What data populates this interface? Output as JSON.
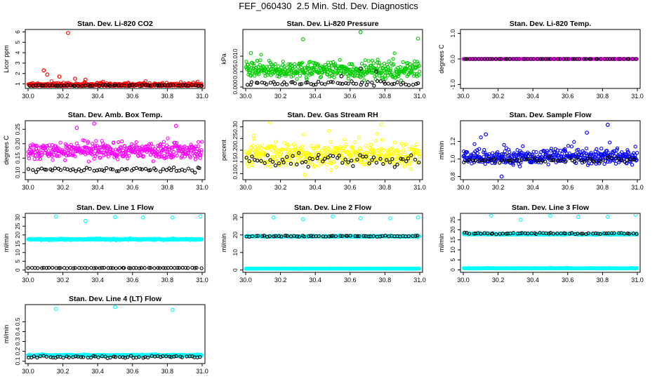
{
  "page": {
    "title": "FEF_060430  2.5 Min. Std. Dev. Diagnostics"
  },
  "colors": {
    "red": "#ff0000",
    "green": "#00cc00",
    "magenta": "#ff00ff",
    "yellow": "#ffff00",
    "blue": "#0000ff",
    "cyan": "#00ffff",
    "black": "#000000"
  },
  "chart_data": [
    {
      "type": "scatter",
      "title": "Stan. Dev. Li-820 CO2",
      "ylabel": "Licor ppm",
      "xlim": [
        30.0,
        31.0
      ],
      "ylim": [
        0.7,
        6.1
      ],
      "xticks": [
        "30.0",
        "30.2",
        "30.4",
        "30.6",
        "30.8",
        "31.0"
      ],
      "yticks": [
        "1",
        "2",
        "3",
        "4",
        "5",
        "6"
      ],
      "series": [
        {
          "name": "primary",
          "color": "red",
          "baseline": 0.9,
          "spread": 0.25,
          "outliers": [
            [
              30.23,
              5.9
            ],
            [
              30.09,
              2.3
            ],
            [
              30.11,
              1.9
            ],
            [
              30.18,
              1.7
            ],
            [
              30.27,
              1.5
            ],
            [
              30.33,
              1.4
            ],
            [
              30.43,
              1.2
            ]
          ]
        },
        {
          "name": "secondary",
          "color": "black",
          "baseline": 0.85,
          "spread": 0.1,
          "outliers": []
        }
      ]
    },
    {
      "type": "scatter",
      "title": "Stan. Dev. Li-820 Pressure",
      "ylabel": "kPa",
      "xlim": [
        30.0,
        31.0
      ],
      "ylim": [
        0.0,
        0.0182
      ],
      "xticks": [
        "30.0",
        "30.2",
        "30.4",
        "30.6",
        "30.8",
        "31.0"
      ],
      "yticks": [
        "0.000",
        "0.005",
        "0.010"
      ],
      "series": [
        {
          "name": "primary",
          "color": "green",
          "baseline": 0.0055,
          "spread": 0.004,
          "outliers": [
            [
              30.33,
              0.0155
            ],
            [
              30.66,
              0.0178
            ],
            [
              30.99,
              0.0157
            ],
            [
              30.03,
              0.011
            ]
          ]
        },
        {
          "name": "secondary",
          "color": "black",
          "baseline": 0.0012,
          "spread": 0.0012,
          "outliers": [
            [
              30.55,
              0.0035
            ],
            [
              30.66,
              0.006
            ],
            [
              30.75,
              0.005
            ]
          ]
        }
      ]
    },
    {
      "type": "scatter",
      "title": "Stan. Dev. Li-820 Temp.",
      "ylabel": "degrees C",
      "xlim": [
        30.0,
        31.0
      ],
      "ylim": [
        -1.1,
        1.1
      ],
      "xticks": [
        "30.0",
        "30.2",
        "30.4",
        "30.6",
        "30.8",
        "31.0"
      ],
      "yticks": [
        "-1.0",
        "0.0",
        "1.0"
      ],
      "series": [
        {
          "name": "primary",
          "color": "magenta",
          "baseline": 0.0,
          "spread": 0.0,
          "outliers": []
        },
        {
          "name": "secondary",
          "color": "black",
          "baseline": 0.0,
          "spread": 0.0,
          "outliers": []
        }
      ]
    },
    {
      "type": "scatter",
      "title": "Stan. Dev. Amb. Box Temp.",
      "ylabel": "degrees C",
      "xlim": [
        30.0,
        31.0
      ],
      "ylim": [
        0.08,
        0.275
      ],
      "xticks": [
        "30.0",
        "30.2",
        "30.4",
        "30.6",
        "30.8",
        "31.0"
      ],
      "yticks": [
        "0.10",
        "0.15",
        "0.20",
        "0.25"
      ],
      "series": [
        {
          "name": "primary",
          "color": "magenta",
          "baseline": 0.175,
          "spread": 0.04,
          "outliers": [
            [
              30.38,
              0.27
            ],
            [
              30.28,
              0.255
            ],
            [
              30.85,
              0.262
            ]
          ]
        },
        {
          "name": "secondary",
          "color": "black",
          "baseline": 0.11,
          "spread": 0.012,
          "outliers": []
        }
      ]
    },
    {
      "type": "scatter",
      "title": "Stan. Dev. Gas Stream RH",
      "ylabel": "percent",
      "xlim": [
        30.0,
        31.0
      ],
      "ylim": [
        0.08,
        0.32
      ],
      "xticks": [
        "30.0",
        "30.2",
        "30.4",
        "30.6",
        "30.8",
        "31.0"
      ],
      "yticks": [
        "0.10",
        "0.15",
        "0.20",
        "0.25",
        "0.30"
      ],
      "series": [
        {
          "name": "primary",
          "color": "yellow",
          "baseline": 0.18,
          "spread": 0.07,
          "outliers": [
            [
              30.14,
              0.32
            ],
            [
              30.78,
              0.31
            ],
            [
              30.34,
              0.095
            ]
          ]
        },
        {
          "name": "secondary",
          "color": "black",
          "baseline": 0.16,
          "spread": 0.045,
          "outliers": []
        }
      ]
    },
    {
      "type": "scatter",
      "title": "Stan. Dev. Sample Flow",
      "ylabel": "ml/min",
      "xlim": [
        30.0,
        31.0
      ],
      "ylim": [
        0.78,
        1.42
      ],
      "xticks": [
        "30.0",
        "30.2",
        "30.4",
        "30.6",
        "30.8",
        "31.0"
      ],
      "yticks": [
        "0.8",
        "1.0",
        "1.2"
      ],
      "series": [
        {
          "name": "primary",
          "color": "blue",
          "baseline": 1.02,
          "spread": 0.12,
          "outliers": [
            [
              30.83,
              1.39
            ],
            [
              30.71,
              1.3
            ],
            [
              30.22,
              0.8
            ],
            [
              30.13,
              1.28
            ]
          ]
        },
        {
          "name": "secondary",
          "color": "black",
          "baseline": 0.99,
          "spread": 0.04,
          "outliers": []
        }
      ]
    },
    {
      "type": "scatter",
      "title": "Stan. Dev. Line 1 Flow",
      "ylabel": "ml/min",
      "xlim": [
        30.0,
        31.0
      ],
      "ylim": [
        -0.5,
        31.5
      ],
      "xticks": [
        "30.0",
        "30.2",
        "30.4",
        "30.6",
        "30.8",
        "31.0"
      ],
      "yticks": [
        "0",
        "5",
        "10",
        "15",
        "20",
        "25",
        "30"
      ],
      "series": [
        {
          "name": "primary",
          "color": "cyan",
          "baseline": 17.5,
          "spread": 0.6,
          "outliers": [
            [
              30.16,
              30.5
            ],
            [
              30.33,
              28.0
            ],
            [
              30.5,
              30.2
            ],
            [
              30.66,
              30.0
            ],
            [
              30.83,
              30.0
            ],
            [
              30.99,
              30.5
            ]
          ]
        },
        {
          "name": "secondary",
          "color": "black",
          "baseline": 1.2,
          "spread": 0.2,
          "outliers": []
        }
      ]
    },
    {
      "type": "scatter",
      "title": "Stan. Dev. Line 2 Flow",
      "ylabel": "ml/min",
      "xlim": [
        30.0,
        31.0
      ],
      "ylim": [
        -0.5,
        31.5
      ],
      "xticks": [
        "30.0",
        "30.2",
        "30.4",
        "30.6",
        "30.8",
        "31.0"
      ],
      "yticks": [
        "0",
        "10",
        "20",
        "30"
      ],
      "series": [
        {
          "name": "primary",
          "color": "cyan",
          "baseline": 0.8,
          "spread": 0.2,
          "outliers": [
            [
              30.16,
              30.0
            ],
            [
              30.33,
              29.0
            ],
            [
              30.5,
              30.5
            ],
            [
              30.66,
              29.5
            ],
            [
              30.83,
              29.5
            ],
            [
              30.99,
              30.0
            ]
          ]
        },
        {
          "name": "primary-band",
          "color": "cyan",
          "baseline": 19.2,
          "spread": 0.5,
          "outliers": []
        },
        {
          "name": "secondary",
          "color": "black",
          "baseline": 19.3,
          "spread": 0.5,
          "outliers": []
        }
      ]
    },
    {
      "type": "scatter",
      "title": "Stan. Dev. Line 3 Flow",
      "ylabel": "ml/min",
      "xlim": [
        30.0,
        31.0
      ],
      "ylim": [
        -0.5,
        27.5
      ],
      "xticks": [
        "30.0",
        "30.2",
        "30.4",
        "30.6",
        "30.8",
        "31.0"
      ],
      "yticks": [
        "0",
        "5",
        "10",
        "15",
        "20",
        "25"
      ],
      "series": [
        {
          "name": "primary",
          "color": "cyan",
          "baseline": 0.8,
          "spread": 0.2,
          "outliers": [
            [
              30.16,
              27.0
            ],
            [
              30.33,
              25.0
            ],
            [
              30.5,
              27.0
            ],
            [
              30.66,
              26.5
            ],
            [
              30.83,
              26.5
            ],
            [
              30.99,
              27.5
            ]
          ]
        },
        {
          "name": "primary-band",
          "color": "cyan",
          "baseline": 17.8,
          "spread": 0.5,
          "outliers": []
        },
        {
          "name": "secondary",
          "color": "black",
          "baseline": 18.2,
          "spread": 0.5,
          "outliers": []
        }
      ]
    },
    {
      "type": "scatter",
      "title": "Stan. Dev. Line 4 (LT) Flow",
      "ylabel": "ml/min",
      "xlim": [
        30.0,
        31.0
      ],
      "ylim": [
        0.09,
        0.66
      ],
      "xticks": [
        "30.0",
        "30.2",
        "30.4",
        "30.6",
        "30.8",
        "31.0"
      ],
      "yticks": [
        "0.1",
        "0.2",
        "0.3",
        "0.4",
        "0.5"
      ],
      "series": [
        {
          "name": "primary",
          "color": "cyan",
          "baseline": 0.16,
          "spread": 0.012,
          "outliers": [
            [
              30.16,
              0.63
            ],
            [
              30.5,
              0.65
            ],
            [
              30.83,
              0.62
            ]
          ]
        },
        {
          "name": "secondary",
          "color": "black",
          "baseline": 0.145,
          "spread": 0.02,
          "outliers": []
        }
      ]
    }
  ]
}
